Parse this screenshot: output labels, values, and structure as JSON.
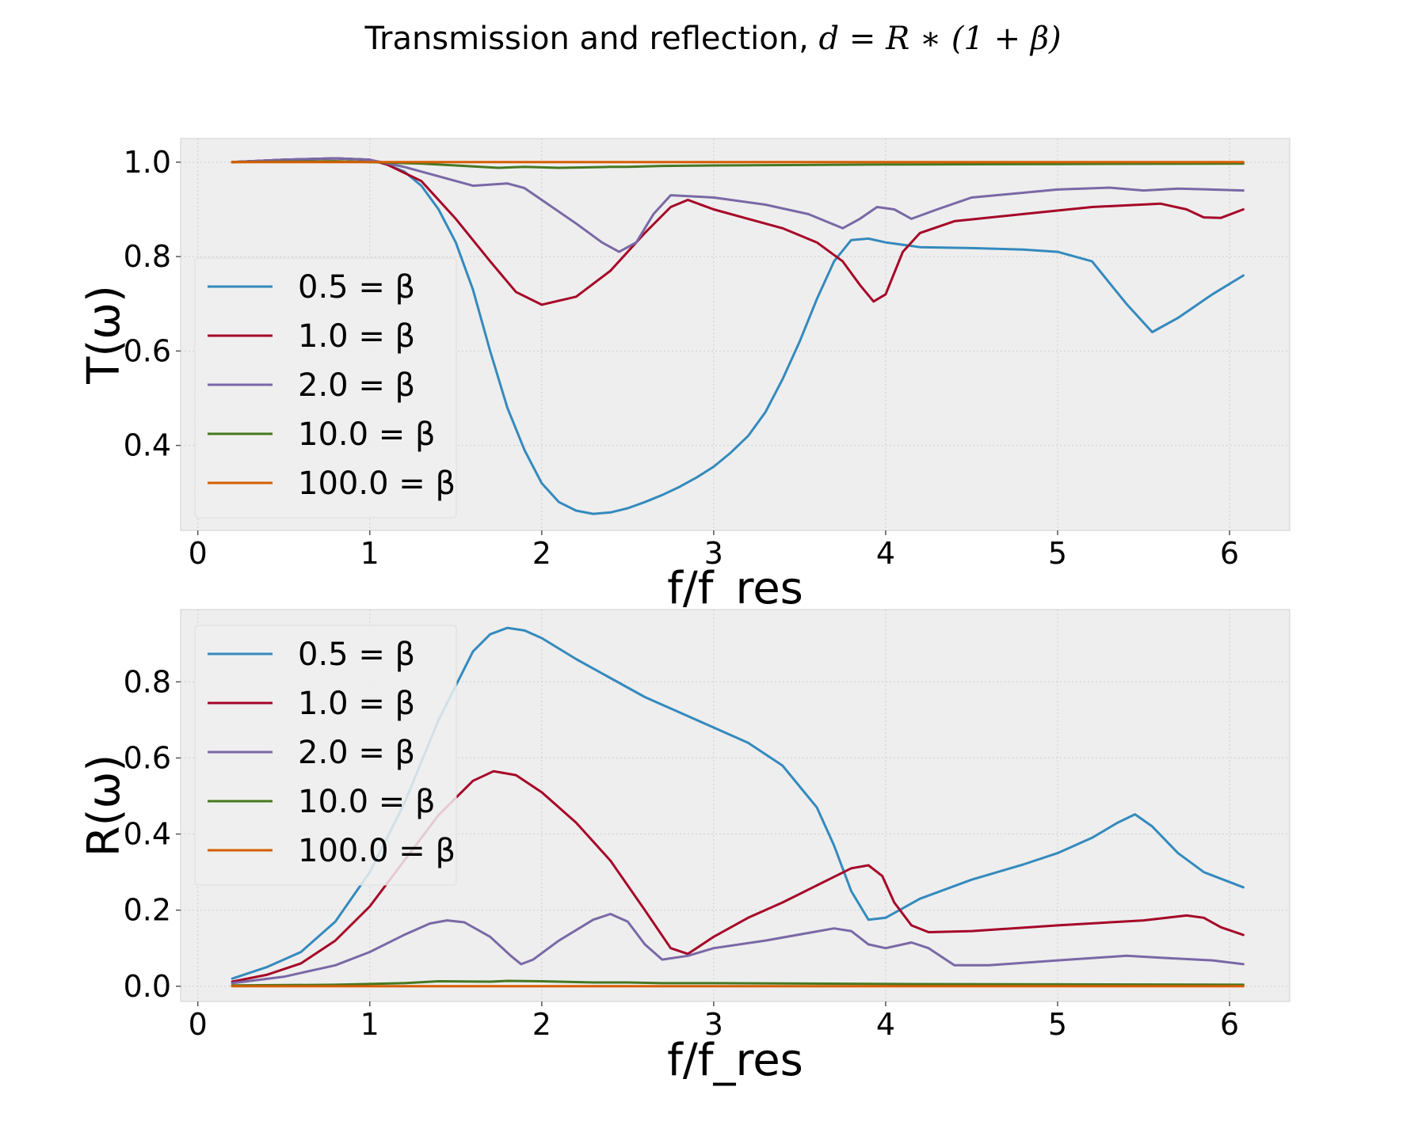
{
  "figure": {
    "title_prefix": "Transmission and reflection, ",
    "title_math": "d = R ∗ (1 + β)"
  },
  "chart_data": [
    {
      "type": "line",
      "xlabel": "f/f_res",
      "ylabel": "T(ω)",
      "xlim": [
        -0.1,
        6.35
      ],
      "ylim": [
        0.22,
        1.05
      ],
      "xticks": [
        0,
        1,
        2,
        3,
        4,
        5,
        6
      ],
      "yticks": [
        0.4,
        0.6,
        0.8,
        1.0
      ],
      "ytick_labels": [
        "0.4",
        "0.6",
        "0.8",
        "1.0"
      ],
      "grid": true,
      "legend_position": "center-left",
      "series": [
        {
          "name": "0.5 = β",
          "color": "#348abd",
          "x": [
            0.2,
            0.5,
            0.8,
            1.0,
            1.1,
            1.2,
            1.3,
            1.4,
            1.5,
            1.6,
            1.7,
            1.8,
            1.9,
            2.0,
            2.1,
            2.2,
            2.3,
            2.4,
            2.5,
            2.6,
            2.7,
            2.8,
            2.9,
            3.0,
            3.1,
            3.2,
            3.3,
            3.4,
            3.5,
            3.6,
            3.7,
            3.8,
            3.9,
            4.0,
            4.2,
            4.5,
            4.8,
            5.0,
            5.2,
            5.4,
            5.55,
            5.7,
            5.9,
            6.08
          ],
          "y": [
            1.0,
            1.005,
            1.008,
            1.005,
            0.995,
            0.98,
            0.95,
            0.9,
            0.83,
            0.73,
            0.6,
            0.48,
            0.39,
            0.32,
            0.28,
            0.262,
            0.255,
            0.258,
            0.267,
            0.28,
            0.295,
            0.312,
            0.332,
            0.355,
            0.385,
            0.42,
            0.47,
            0.54,
            0.62,
            0.71,
            0.79,
            0.835,
            0.838,
            0.83,
            0.82,
            0.818,
            0.815,
            0.81,
            0.79,
            0.7,
            0.64,
            0.67,
            0.72,
            0.76
          ]
        },
        {
          "name": "1.0 = β",
          "color": "#a60628",
          "x": [
            0.2,
            0.5,
            0.8,
            1.0,
            1.1,
            1.3,
            1.5,
            1.7,
            1.85,
            2.0,
            2.2,
            2.4,
            2.6,
            2.75,
            2.85,
            3.0,
            3.2,
            3.4,
            3.6,
            3.75,
            3.85,
            3.93,
            4.0,
            4.1,
            4.2,
            4.4,
            4.8,
            5.2,
            5.6,
            5.75,
            5.85,
            5.95,
            6.08
          ],
          "y": [
            1.0,
            1.005,
            1.008,
            1.005,
            0.995,
            0.96,
            0.88,
            0.79,
            0.725,
            0.698,
            0.715,
            0.77,
            0.85,
            0.905,
            0.92,
            0.9,
            0.88,
            0.86,
            0.83,
            0.79,
            0.74,
            0.705,
            0.72,
            0.81,
            0.85,
            0.875,
            0.89,
            0.905,
            0.912,
            0.9,
            0.883,
            0.882,
            0.9
          ]
        },
        {
          "name": "2.0 = β",
          "color": "#7a68a6",
          "x": [
            0.2,
            0.5,
            0.8,
            1.0,
            1.2,
            1.4,
            1.6,
            1.8,
            1.9,
            2.0,
            2.2,
            2.35,
            2.45,
            2.55,
            2.65,
            2.75,
            3.0,
            3.3,
            3.55,
            3.75,
            3.85,
            3.95,
            4.05,
            4.15,
            4.3,
            4.5,
            5.0,
            5.3,
            5.5,
            5.7,
            6.08
          ],
          "y": [
            1.0,
            1.005,
            1.008,
            1.005,
            0.99,
            0.97,
            0.95,
            0.955,
            0.945,
            0.92,
            0.87,
            0.83,
            0.81,
            0.83,
            0.89,
            0.93,
            0.925,
            0.91,
            0.89,
            0.86,
            0.88,
            0.905,
            0.9,
            0.88,
            0.9,
            0.925,
            0.942,
            0.946,
            0.94,
            0.944,
            0.94
          ]
        },
        {
          "name": "10.0 = β",
          "color": "#467821",
          "x": [
            0.2,
            0.8,
            1.0,
            1.3,
            1.5,
            1.75,
            1.9,
            2.1,
            2.4,
            2.5,
            2.7,
            3.0,
            4.0,
            5.0,
            6.08
          ],
          "y": [
            1.0,
            1.002,
            1.0,
            0.997,
            0.993,
            0.988,
            0.99,
            0.988,
            0.99,
            0.99,
            0.992,
            0.993,
            0.995,
            0.996,
            0.997
          ]
        },
        {
          "name": "100.0 = β",
          "color": "#d55e00",
          "x": [
            0.2,
            1.0,
            2.0,
            3.0,
            4.0,
            5.0,
            6.08
          ],
          "y": [
            1.0,
            1.0,
            1.0,
            1.0,
            1.0,
            1.0,
            1.0
          ]
        }
      ]
    },
    {
      "type": "line",
      "xlabel": "f/f_res",
      "ylabel": "R(ω)",
      "xlim": [
        -0.1,
        6.35
      ],
      "ylim": [
        -0.04,
        0.99
      ],
      "xticks": [
        0,
        1,
        2,
        3,
        4,
        5,
        6
      ],
      "yticks": [
        0.0,
        0.2,
        0.4,
        0.6,
        0.8
      ],
      "ytick_labels": [
        "0.0",
        "0.2",
        "0.4",
        "0.6",
        "0.8"
      ],
      "grid": true,
      "legend_position": "upper-left",
      "series": [
        {
          "name": "0.5 = β",
          "color": "#348abd",
          "x": [
            0.2,
            0.4,
            0.6,
            0.8,
            1.0,
            1.2,
            1.4,
            1.6,
            1.7,
            1.8,
            1.9,
            2.0,
            2.2,
            2.4,
            2.6,
            2.8,
            3.0,
            3.2,
            3.4,
            3.6,
            3.7,
            3.8,
            3.9,
            4.0,
            4.2,
            4.5,
            4.8,
            5.0,
            5.2,
            5.35,
            5.45,
            5.55,
            5.7,
            5.85,
            6.08
          ],
          "y": [
            0.02,
            0.05,
            0.09,
            0.17,
            0.3,
            0.48,
            0.7,
            0.88,
            0.925,
            0.942,
            0.935,
            0.915,
            0.86,
            0.81,
            0.76,
            0.72,
            0.68,
            0.64,
            0.58,
            0.47,
            0.37,
            0.25,
            0.175,
            0.18,
            0.23,
            0.28,
            0.32,
            0.35,
            0.39,
            0.43,
            0.452,
            0.42,
            0.35,
            0.3,
            0.26
          ]
        },
        {
          "name": "1.0 = β",
          "color": "#a60628",
          "x": [
            0.2,
            0.4,
            0.6,
            0.8,
            1.0,
            1.2,
            1.4,
            1.6,
            1.72,
            1.85,
            2.0,
            2.2,
            2.4,
            2.6,
            2.75,
            2.85,
            3.0,
            3.2,
            3.4,
            3.6,
            3.8,
            3.9,
            3.98,
            4.05,
            4.15,
            4.25,
            4.5,
            5.0,
            5.5,
            5.75,
            5.85,
            5.95,
            6.08
          ],
          "y": [
            0.012,
            0.03,
            0.06,
            0.12,
            0.21,
            0.33,
            0.45,
            0.54,
            0.565,
            0.555,
            0.51,
            0.43,
            0.33,
            0.2,
            0.1,
            0.085,
            0.13,
            0.18,
            0.22,
            0.265,
            0.31,
            0.318,
            0.29,
            0.22,
            0.16,
            0.142,
            0.145,
            0.16,
            0.173,
            0.186,
            0.18,
            0.155,
            0.135
          ]
        },
        {
          "name": "2.0 = β",
          "color": "#7a68a6",
          "x": [
            0.2,
            0.5,
            0.8,
            1.0,
            1.2,
            1.35,
            1.45,
            1.55,
            1.7,
            1.82,
            1.88,
            1.95,
            2.1,
            2.3,
            2.4,
            2.5,
            2.6,
            2.7,
            2.85,
            3.0,
            3.3,
            3.55,
            3.7,
            3.8,
            3.9,
            4.0,
            4.15,
            4.25,
            4.4,
            4.6,
            5.0,
            5.4,
            5.6,
            5.9,
            6.08
          ],
          "y": [
            0.008,
            0.025,
            0.055,
            0.09,
            0.135,
            0.165,
            0.173,
            0.168,
            0.13,
            0.08,
            0.058,
            0.07,
            0.12,
            0.175,
            0.19,
            0.17,
            0.11,
            0.07,
            0.08,
            0.1,
            0.12,
            0.14,
            0.152,
            0.145,
            0.11,
            0.1,
            0.115,
            0.1,
            0.055,
            0.055,
            0.068,
            0.08,
            0.075,
            0.068,
            0.058
          ]
        },
        {
          "name": "10.0 = β",
          "color": "#467821",
          "x": [
            0.2,
            0.8,
            1.0,
            1.2,
            1.4,
            1.7,
            1.8,
            2.0,
            2.3,
            2.5,
            2.7,
            3.0,
            4.0,
            5.0,
            6.08
          ],
          "y": [
            0.002,
            0.004,
            0.006,
            0.008,
            0.013,
            0.012,
            0.014,
            0.013,
            0.01,
            0.01,
            0.008,
            0.008,
            0.006,
            0.005,
            0.004
          ]
        },
        {
          "name": "100.0 = β",
          "color": "#d55e00",
          "x": [
            0.2,
            1.0,
            2.0,
            3.0,
            4.0,
            5.0,
            6.08
          ],
          "y": [
            0.0,
            0.0,
            0.0,
            0.0,
            0.0,
            0.0,
            0.0
          ]
        }
      ]
    }
  ]
}
